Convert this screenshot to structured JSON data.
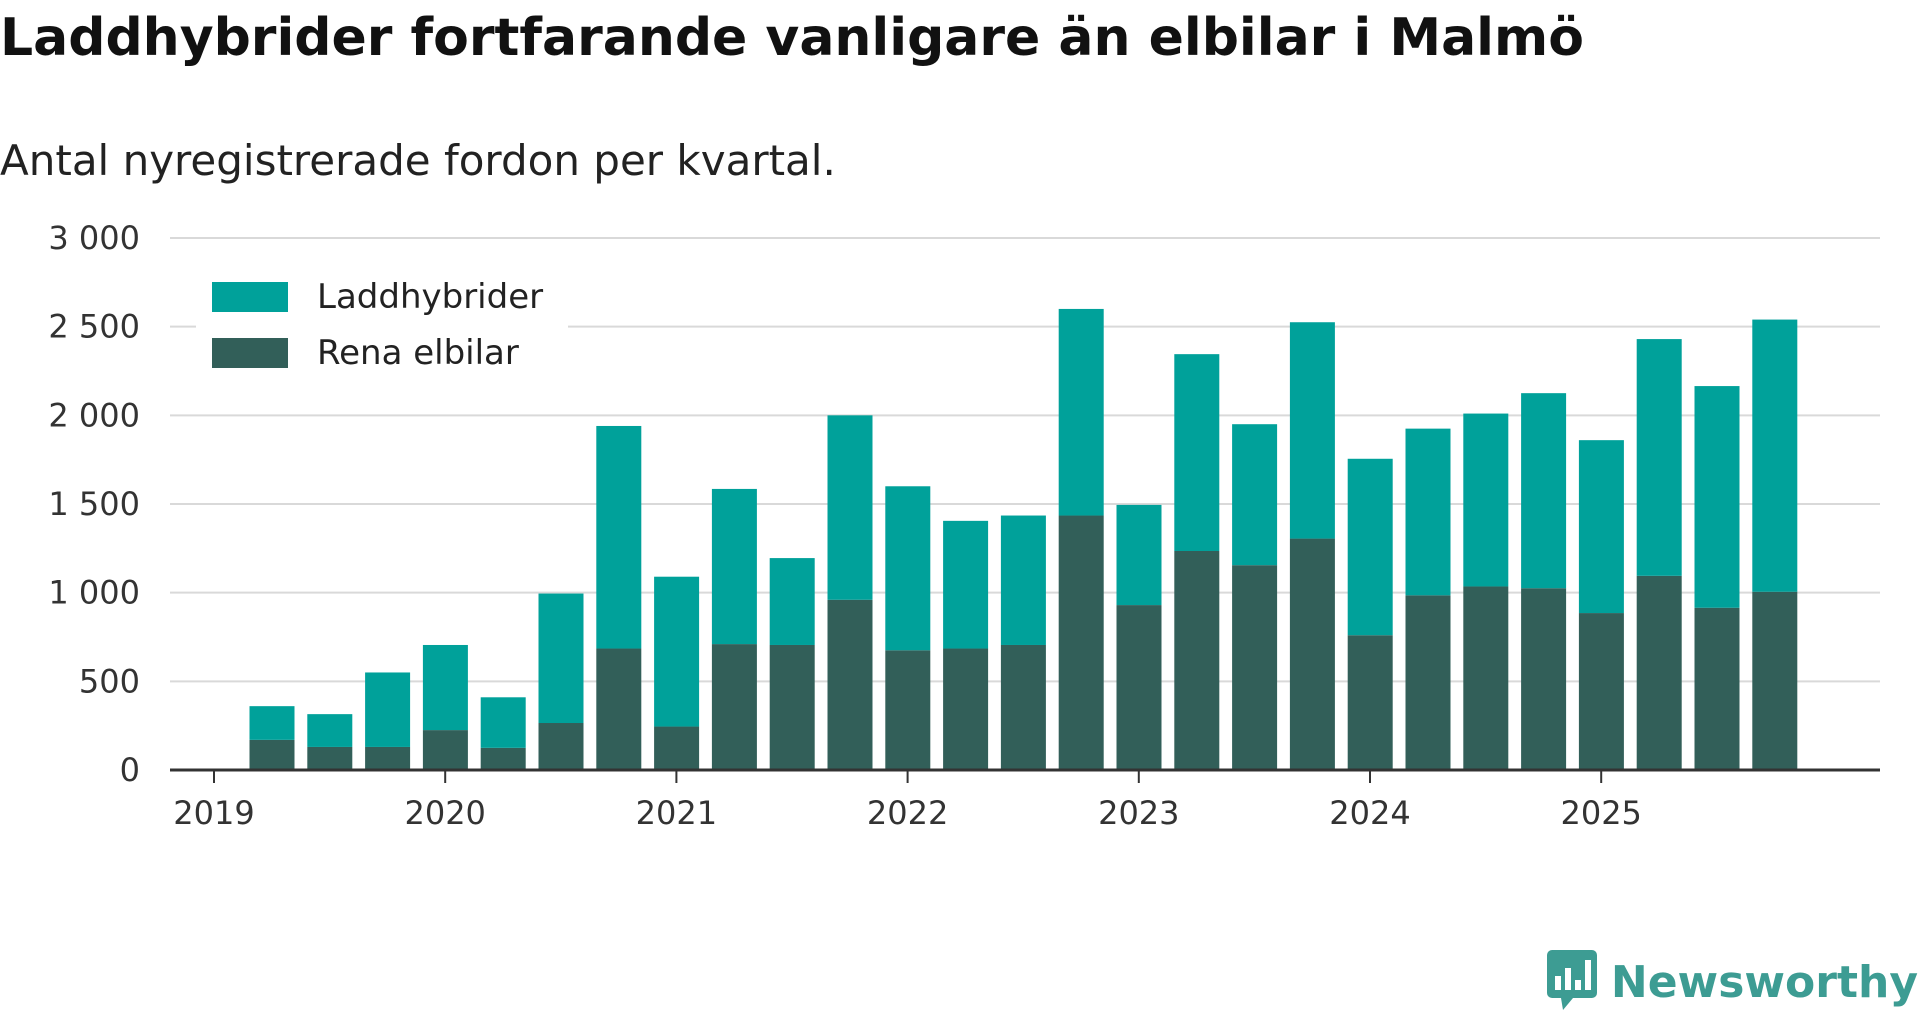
{
  "colors": {
    "phev": "#00a19a",
    "bev": "#325f59",
    "grid": "#d9d9d9",
    "axis": "#333333",
    "brand": "#3d9c93"
  },
  "brand": {
    "name": "Newsworthy",
    "icon": "bar-chart-speech-icon"
  },
  "chart_data": {
    "type": "bar",
    "stacked": true,
    "title": "Laddhybrider fortfarande vanligare än elbilar i Malmö",
    "subtitle": "Antal nyregistrerade fordon per kvartal.",
    "xlabel": "",
    "ylabel": "",
    "ylim": [
      0,
      3000
    ],
    "yticks": [
      0,
      500,
      1000,
      1500,
      2000,
      2500,
      3000
    ],
    "ytick_labels": [
      "0",
      "500",
      "1 000",
      "1 500",
      "2 000",
      "2 500",
      "3 000"
    ],
    "xticks": [
      "2019",
      "2020",
      "2021",
      "2022",
      "2023",
      "2024",
      "2025"
    ],
    "legend_position": "top-left",
    "categories": [
      "2019 Q2",
      "2019 Q3",
      "2019 Q4",
      "2020 Q1",
      "2020 Q2",
      "2020 Q3",
      "2020 Q4",
      "2021 Q1",
      "2021 Q2",
      "2021 Q3",
      "2021 Q4",
      "2022 Q1",
      "2022 Q2",
      "2022 Q3",
      "2022 Q4",
      "2023 Q1",
      "2023 Q2",
      "2023 Q3",
      "2023 Q4",
      "2024 Q1",
      "2024 Q2",
      "2024 Q3",
      "2024 Q4",
      "2025 Q1",
      "2025 Q2",
      "2025 Q3",
      "2025 Q4"
    ],
    "series": [
      {
        "name": "Rena elbilar",
        "values": [
          170,
          130,
          130,
          225,
          125,
          265,
          685,
          245,
          710,
          705,
          960,
          675,
          685,
          705,
          1435,
          930,
          1235,
          1155,
          1305,
          760,
          985,
          1035,
          1025,
          885,
          1095,
          915,
          1005
        ]
      },
      {
        "name": "Laddhybrider",
        "values": [
          190,
          185,
          420,
          480,
          285,
          730,
          1255,
          845,
          875,
          490,
          1040,
          925,
          720,
          730,
          1165,
          565,
          1110,
          795,
          1220,
          995,
          940,
          975,
          1100,
          975,
          1335,
          1250,
          1535
        ]
      }
    ]
  }
}
